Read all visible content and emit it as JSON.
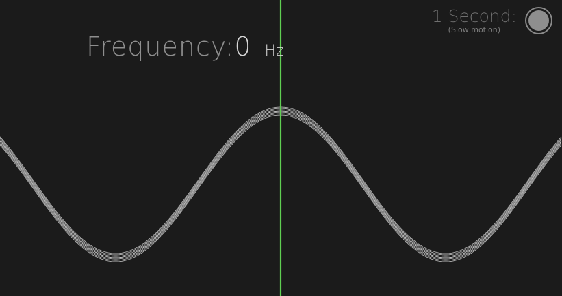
{
  "frequency": {
    "label": "Frequency:",
    "value": "0",
    "unit": "Hz"
  },
  "duration": {
    "label": "1 Second:",
    "note": "(Slow motion)",
    "toggle_on": true
  },
  "colors": {
    "background": "#1b1b1b",
    "wave": "#d8d8d8",
    "playhead": "#5fcf52",
    "text_dim": "#8c8c8c"
  }
}
